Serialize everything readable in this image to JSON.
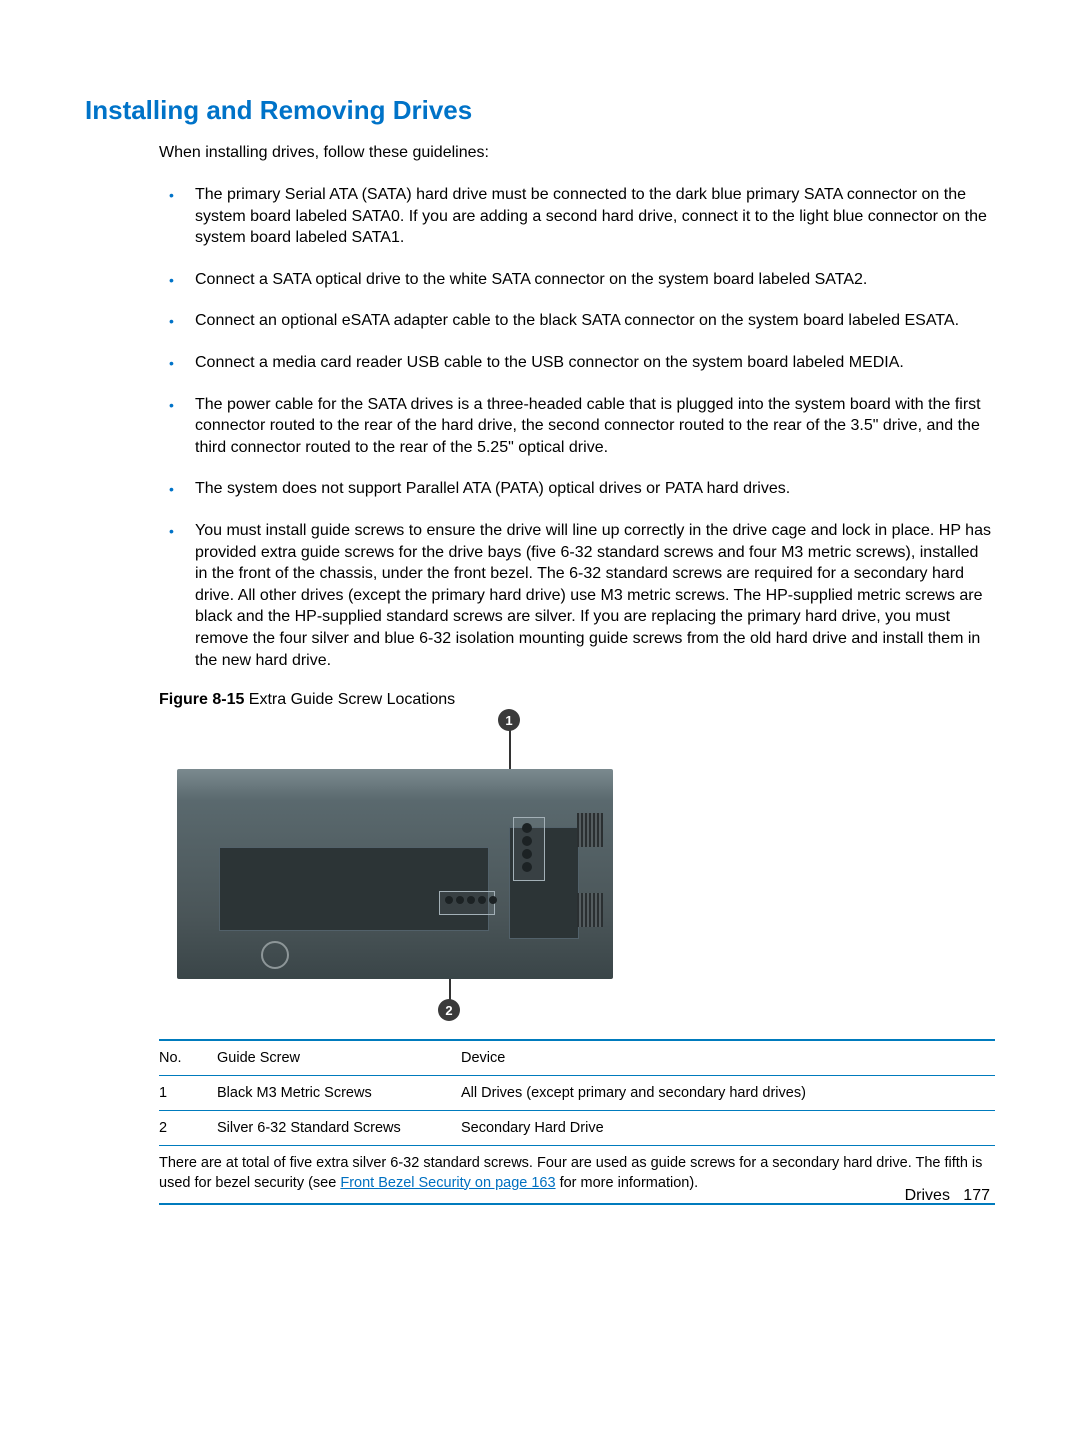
{
  "colors": {
    "heading": "#0073c8",
    "bullet": "#0073c8",
    "rule": "#007bbd",
    "link": "#0070c0",
    "text": "#000000"
  },
  "heading": "Installing and Removing Drives",
  "intro": "When installing drives, follow these guidelines:",
  "bullets": [
    "The primary Serial ATA (SATA) hard drive must be connected to the dark blue primary SATA connector on the system board labeled SATA0. If you are adding a second hard drive, connect it to the light blue connector on the system board labeled SATA1.",
    "Connect a SATA optical drive to the white SATA connector on the system board labeled SATA2.",
    "Connect an optional eSATA adapter cable to the black SATA connector on the system board labeled ESATA.",
    "Connect a media card reader USB cable to the USB connector on the system board labeled MEDIA.",
    "The power cable for the SATA drives is a three-headed cable that is plugged into the system board with the first connector routed to the rear of the hard drive, the second connector routed to the rear of the 3.5\" drive, and the third connector routed to the rear of the 5.25\" optical drive.",
    "The system does not support Parallel ATA (PATA) optical drives or PATA hard drives.",
    "You must install guide screws to ensure the drive will line up correctly in the drive cage and lock in place. HP has provided extra guide screws for the drive bays (five 6-32 standard screws and four M3 metric screws), installed in the front of the chassis, under the front bezel. The 6-32 standard screws are required for a secondary hard drive. All other drives (except the primary hard drive) use M3 metric screws. The HP-supplied metric screws are black and the HP-supplied standard screws are silver. If you are replacing the primary hard drive, you must remove the four silver and blue 6-32 isolation mounting guide screws from the old hard drive and install them in the new hard drive."
  ],
  "figure": {
    "label_bold": "Figure 8-15",
    "label_rest": "  Extra Guide Screw Locations",
    "callout1": "1",
    "callout2": "2"
  },
  "table": {
    "headers": {
      "no": "No.",
      "guide": "Guide Screw",
      "device": "Device"
    },
    "rows": [
      {
        "no": "1",
        "guide": "Black M3 Metric Screws",
        "device": "All Drives (except primary and secondary hard drives)"
      },
      {
        "no": "2",
        "guide": "Silver 6-32 Standard Screws",
        "device": "Secondary Hard Drive"
      }
    ],
    "footnote_pre": "There are at total of five extra silver 6-32 standard screws. Four are used as guide screws for a secondary hard drive. The fifth is used for bezel security (see ",
    "footnote_link": "Front Bezel Security on page 163",
    "footnote_post": " for more information)."
  },
  "footer": {
    "section": "Drives",
    "page": "177"
  }
}
